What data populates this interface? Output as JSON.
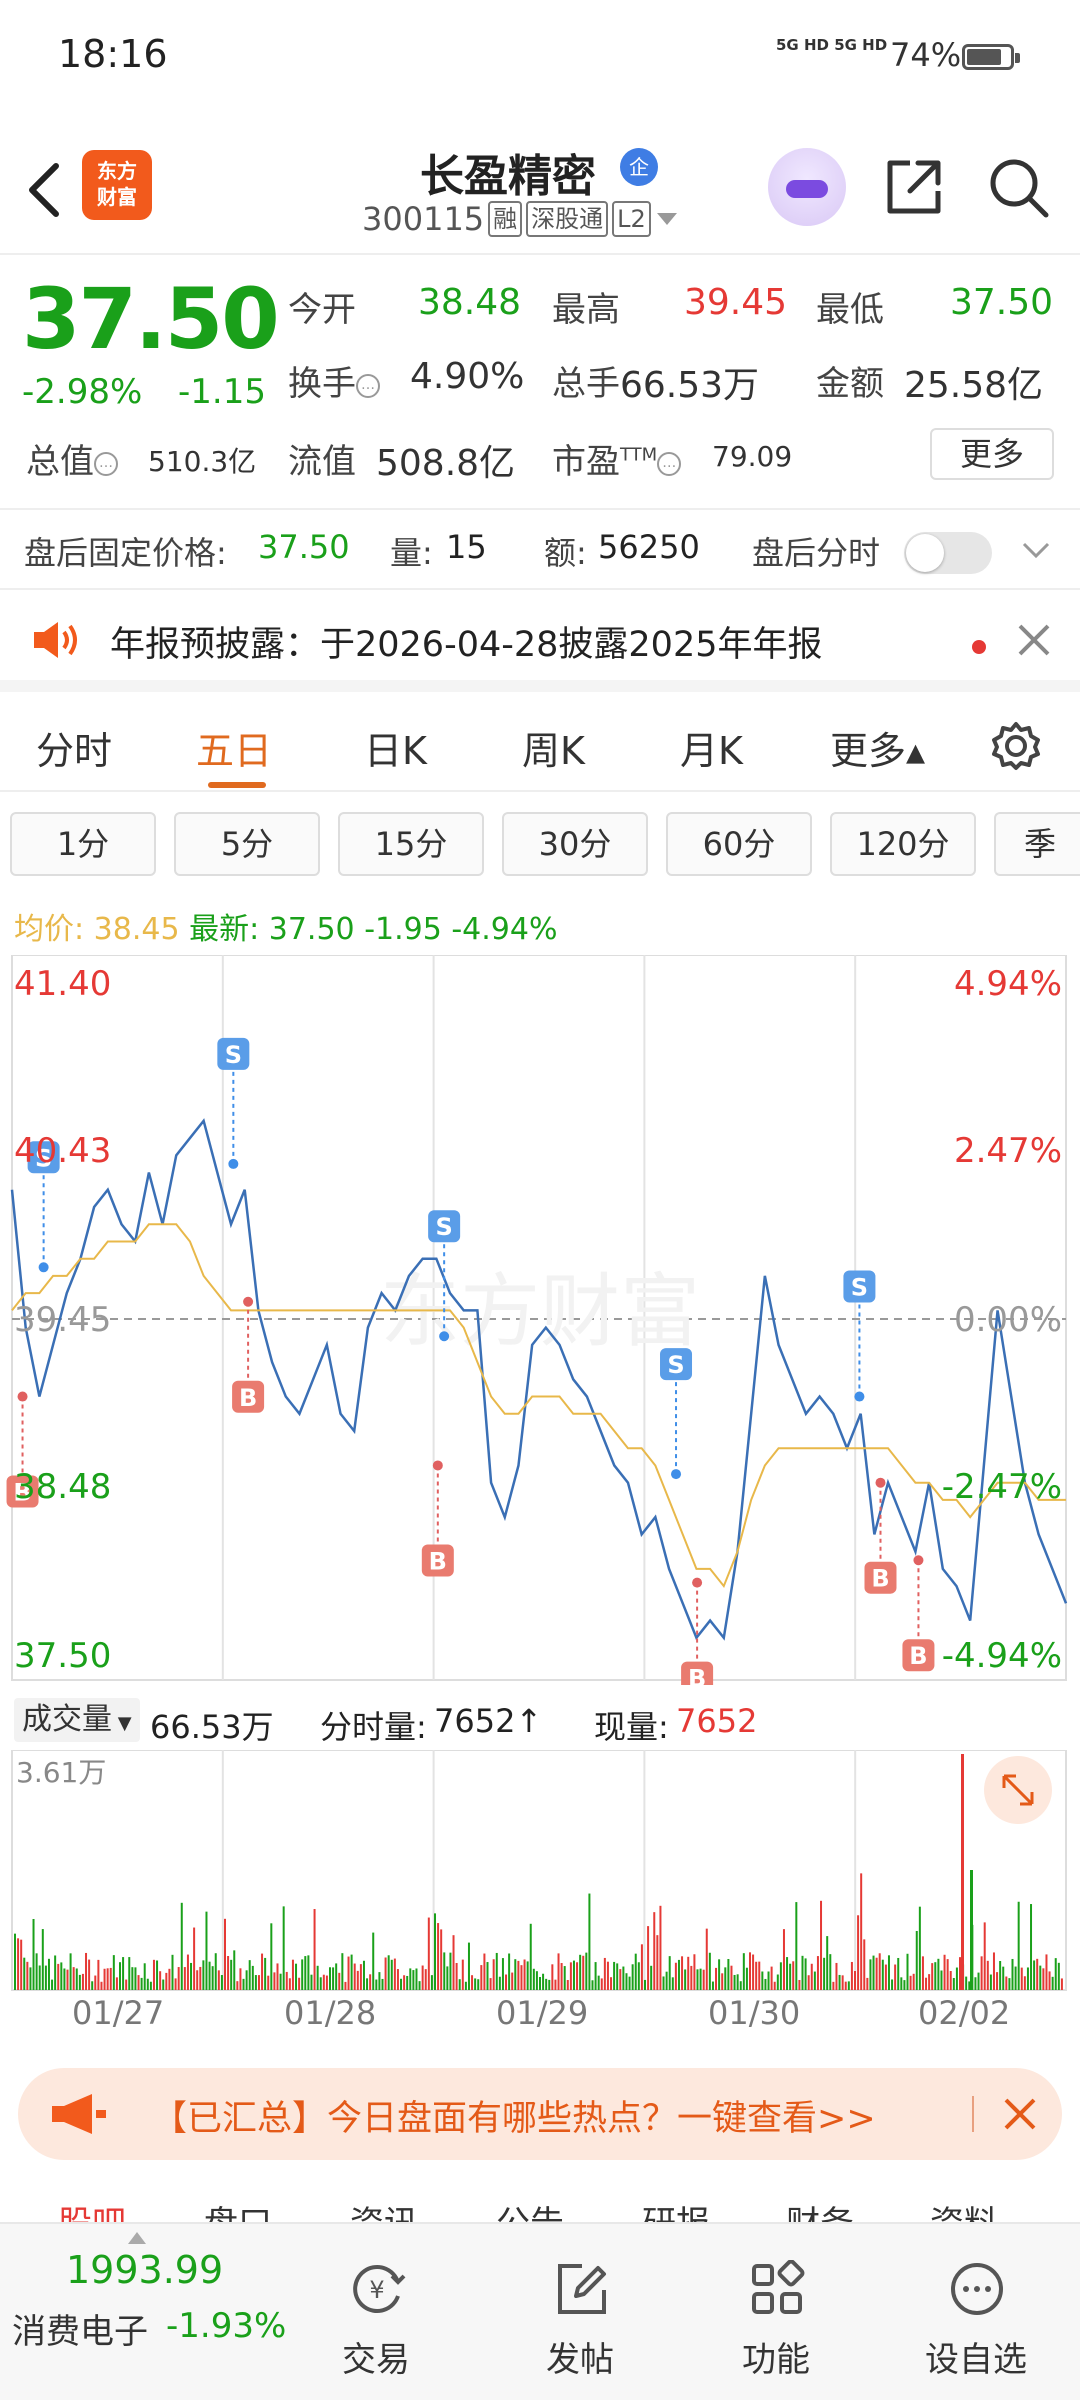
{
  "status_bar": {
    "time": "18:16",
    "network": "5G HD 5G HD",
    "battery": "74%"
  },
  "header": {
    "logo_line1": "东方",
    "logo_line2": "财富",
    "stock_name": "长盈精密",
    "badge": "企",
    "code": "300115",
    "tags": [
      "融",
      "深股通",
      "L2"
    ]
  },
  "quote": {
    "price": "37.50",
    "pct_change": "-2.98%",
    "change": "-1.15",
    "open_label": "今开",
    "open": "38.48",
    "high_label": "最高",
    "high": "39.45",
    "low_label": "最低",
    "low": "37.50",
    "turnover_label": "换手",
    "turnover": "4.90%",
    "volume_label": "总手",
    "volume": "66.53万",
    "amount_label": "金额",
    "amount": "25.58亿",
    "mktcap_label": "总值",
    "mktcap": "510.3亿",
    "float_label": "流值",
    "float_cap": "508.8亿",
    "pe_label": "市盈",
    "pe_sup": "TTM",
    "pe": "79.09",
    "more": "更多"
  },
  "after_hours": {
    "price_label": "盘后固定价格:",
    "price": "37.50",
    "vol_label": "量:",
    "vol": "15",
    "amt_label": "额:",
    "amt": "56250",
    "toggle_label": "盘后分时"
  },
  "notice": {
    "text": "年报预披露：于2026-04-28披露2025年年报"
  },
  "tabs": [
    "分时",
    "五日",
    "日K",
    "周K",
    "月K",
    "更多▴"
  ],
  "intervals": [
    "1分",
    "5分",
    "15分",
    "30分",
    "60分",
    "120分",
    "季"
  ],
  "avg_info": {
    "avg_label": "均价:",
    "avg": "38.45",
    "latest_label": "最新:",
    "latest": "37.50",
    "change": "-1.95",
    "pct": "-4.94%"
  },
  "volume_bar": {
    "dropdown": "成交量",
    "total": "66.53万",
    "minute_label": "分时量:",
    "minute_vol": "7652↑",
    "current_label": "现量:",
    "current_vol": "7652"
  },
  "chart_data": {
    "type": "line",
    "title": "",
    "y_left_ticks": [
      "41.40",
      "40.43",
      "39.45",
      "38.48",
      "37.50"
    ],
    "y_right_ticks": [
      "4.94%",
      "2.47%",
      "0.00%",
      "-2.47%",
      "-4.94%"
    ],
    "ylim": [
      37.5,
      41.4
    ],
    "x_labels": [
      "01/27",
      "01/28",
      "01/29",
      "01/30",
      "02/02"
    ],
    "volume_max_label": "3.61万",
    "series": [
      {
        "name": "",
        "color": "#3a6fb5",
        "values": [
          40.2,
          39.4,
          39.0,
          39.3,
          39.6,
          39.8,
          40.1,
          40.2,
          40.0,
          39.9,
          40.3,
          40.0,
          40.4,
          40.5,
          40.6,
          40.3,
          40.0,
          40.2,
          39.5,
          39.2,
          39.0,
          38.9,
          39.1,
          39.3,
          38.9,
          38.8,
          39.4,
          39.6,
          39.5,
          39.7,
          39.8,
          39.8,
          39.6,
          39.5,
          39.5,
          38.5,
          38.3,
          38.6,
          39.3,
          39.4,
          39.3,
          39.1,
          39.0,
          38.8,
          38.6,
          38.5,
          38.2,
          38.3,
          38.0,
          37.8,
          37.6,
          37.7,
          37.6,
          38.1,
          38.9,
          39.7,
          39.3,
          39.1,
          38.9,
          39.0,
          38.9,
          38.7,
          38.9,
          38.2,
          38.5,
          38.3,
          38.1,
          38.5,
          38.0,
          37.9,
          37.7,
          38.6,
          39.5,
          39.0,
          38.5,
          38.2,
          38.0,
          37.8
        ]
      },
      {
        "name": "",
        "color": "#e8b84a",
        "values": [
          39.5,
          39.6,
          39.6,
          39.7,
          39.7,
          39.8,
          39.8,
          39.9,
          39.9,
          39.9,
          40.0,
          40.0,
          40.0,
          39.9,
          39.7,
          39.6,
          39.5,
          39.5,
          39.5,
          39.5,
          39.5,
          39.5,
          39.5,
          39.5,
          39.5,
          39.5,
          39.5,
          39.5,
          39.5,
          39.5,
          39.5,
          39.5,
          39.5,
          39.4,
          39.2,
          39.0,
          38.9,
          38.9,
          39.0,
          39.0,
          39.0,
          38.9,
          38.9,
          38.9,
          38.8,
          38.7,
          38.7,
          38.6,
          38.4,
          38.2,
          38.0,
          38.0,
          37.9,
          38.1,
          38.4,
          38.6,
          38.7,
          38.7,
          38.7,
          38.7,
          38.7,
          38.7,
          38.7,
          38.7,
          38.7,
          38.6,
          38.5,
          38.5,
          38.4,
          38.4,
          38.3,
          38.4,
          38.5,
          38.5,
          38.5,
          38.4,
          38.4,
          38.4
        ]
      }
    ],
    "markers": [
      {
        "type": "S",
        "day": 0.15,
        "price": 39.75
      },
      {
        "type": "B",
        "day": 0.05,
        "price": 39.0
      },
      {
        "type": "S",
        "day": 1.05,
        "price": 40.35
      },
      {
        "type": "B",
        "day": 1.12,
        "price": 39.55
      },
      {
        "type": "S",
        "day": 2.05,
        "price": 39.35
      },
      {
        "type": "B",
        "day": 2.02,
        "price": 38.6
      },
      {
        "type": "S",
        "day": 3.15,
        "price": 38.55
      },
      {
        "type": "B",
        "day": 3.25,
        "price": 37.92
      },
      {
        "type": "S",
        "day": 4.02,
        "price": 39.0
      },
      {
        "type": "B",
        "day": 4.12,
        "price": 38.5
      },
      {
        "type": "B",
        "day": 4.3,
        "price": 38.05
      }
    ]
  },
  "promo": {
    "text": "【已汇总】今日盘面有哪些热点？一键查看>>"
  },
  "sub_tabs": [
    "股吧",
    "盘口",
    "资讯",
    "公告",
    "研报",
    "财务",
    "资料"
  ],
  "bottom_bar": {
    "index_value": "1993.99",
    "index_name": "消费电子",
    "index_pct": "-1.93%",
    "items": [
      "交易",
      "发帖",
      "功能",
      "设自选"
    ]
  },
  "colors": {
    "up": "#e53935",
    "down": "#1aa01a",
    "accent": "#e06a1f"
  }
}
